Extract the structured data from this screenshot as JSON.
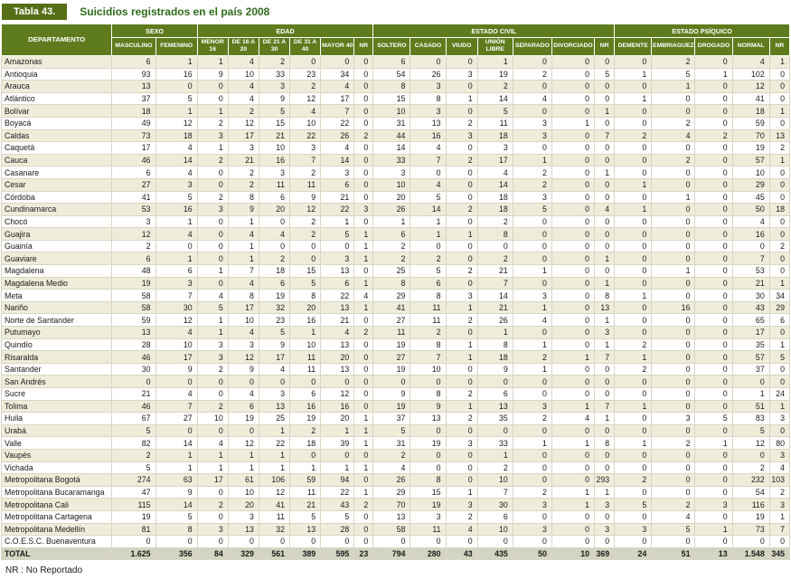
{
  "title": {
    "tab": "Tabla 43.",
    "text": "Suicidios registrados en el país 2008"
  },
  "footer": "NR : No Reportado",
  "colors": {
    "header_green": "#5e7c1e",
    "tab_green": "#566f16",
    "title_green": "#2f6b1c",
    "row_alt_beige": "#efecda",
    "total_row_gray": "#d4d4c2"
  },
  "table": {
    "corner_header": "DEPARTAMENTO",
    "groups": [
      {
        "label": "SEXO",
        "columns": [
          "MASCULINO",
          "FEMENINO"
        ]
      },
      {
        "label": "EDAD",
        "columns": [
          "MENOR 16",
          "DE 16 A 20",
          "DE 21 A 30",
          "DE 31 A 40",
          "MAYOR 40",
          "NR"
        ]
      },
      {
        "label": "ESTADO CIVIL",
        "columns": [
          "SOLTERO",
          "CASADO",
          "VIUDO",
          "UNIÓN LIBRE",
          "SEPARADO",
          "DIVORCIADO",
          "NR"
        ]
      },
      {
        "label": "ESTADO PSÍQUICO",
        "columns": [
          "DEMENTE",
          "EMBRIAGUEZ",
          "DROGADO",
          "NORMAL",
          "NR"
        ]
      }
    ],
    "rows": [
      {
        "name": "Amazonas",
        "values": [
          6,
          1,
          1,
          4,
          2,
          0,
          0,
          0,
          6,
          0,
          0,
          1,
          0,
          0,
          0,
          0,
          2,
          0,
          4,
          1
        ]
      },
      {
        "name": "Antioquia",
        "values": [
          93,
          16,
          9,
          10,
          33,
          23,
          34,
          0,
          54,
          26,
          3,
          19,
          2,
          0,
          5,
          1,
          5,
          1,
          102,
          0
        ]
      },
      {
        "name": "Arauca",
        "values": [
          13,
          0,
          0,
          4,
          3,
          2,
          4,
          0,
          8,
          3,
          0,
          2,
          0,
          0,
          0,
          0,
          1,
          0,
          12,
          0
        ]
      },
      {
        "name": "Atlántico",
        "values": [
          37,
          5,
          0,
          4,
          9,
          12,
          17,
          0,
          15,
          8,
          1,
          14,
          4,
          0,
          0,
          1,
          0,
          0,
          41,
          0
        ]
      },
      {
        "name": "Bolívar",
        "values": [
          18,
          1,
          1,
          2,
          5,
          4,
          7,
          0,
          10,
          3,
          0,
          5,
          0,
          0,
          1,
          0,
          0,
          0,
          18,
          1
        ]
      },
      {
        "name": "Boyacá",
        "values": [
          49,
          12,
          2,
          12,
          15,
          10,
          22,
          0,
          31,
          13,
          2,
          11,
          3,
          1,
          0,
          0,
          2,
          0,
          59,
          0
        ]
      },
      {
        "name": "Caldas",
        "values": [
          73,
          18,
          3,
          17,
          21,
          22,
          26,
          2,
          44,
          16,
          3,
          18,
          3,
          0,
          7,
          2,
          4,
          2,
          70,
          13
        ]
      },
      {
        "name": "Caquetá",
        "values": [
          17,
          4,
          1,
          3,
          10,
          3,
          4,
          0,
          14,
          4,
          0,
          3,
          0,
          0,
          0,
          0,
          0,
          0,
          19,
          2
        ]
      },
      {
        "name": "Cauca",
        "values": [
          46,
          14,
          2,
          21,
          16,
          7,
          14,
          0,
          33,
          7,
          2,
          17,
          1,
          0,
          0,
          0,
          2,
          0,
          57,
          1
        ]
      },
      {
        "name": "Casanare",
        "values": [
          6,
          4,
          0,
          2,
          3,
          2,
          3,
          0,
          3,
          0,
          0,
          4,
          2,
          0,
          1,
          0,
          0,
          0,
          10,
          0
        ]
      },
      {
        "name": "Cesar",
        "values": [
          27,
          3,
          0,
          2,
          11,
          11,
          6,
          0,
          10,
          4,
          0,
          14,
          2,
          0,
          0,
          1,
          0,
          0,
          29,
          0
        ]
      },
      {
        "name": "Córdoba",
        "values": [
          41,
          5,
          2,
          8,
          6,
          9,
          21,
          0,
          20,
          5,
          0,
          18,
          3,
          0,
          0,
          0,
          1,
          0,
          45,
          0
        ]
      },
      {
        "name": "Cundinamarca",
        "values": [
          53,
          16,
          3,
          9,
          20,
          12,
          22,
          3,
          26,
          14,
          2,
          18,
          5,
          0,
          4,
          1,
          0,
          0,
          50,
          18
        ]
      },
      {
        "name": "Chocó",
        "values": [
          3,
          1,
          0,
          1,
          0,
          2,
          1,
          0,
          1,
          1,
          0,
          2,
          0,
          0,
          0,
          0,
          0,
          0,
          4,
          0
        ]
      },
      {
        "name": "Guajira",
        "values": [
          12,
          4,
          0,
          4,
          4,
          2,
          5,
          1,
          6,
          1,
          1,
          8,
          0,
          0,
          0,
          0,
          0,
          0,
          16,
          0
        ]
      },
      {
        "name": "Guainía",
        "values": [
          2,
          0,
          0,
          1,
          0,
          0,
          0,
          1,
          2,
          0,
          0,
          0,
          0,
          0,
          0,
          0,
          0,
          0,
          0,
          2
        ]
      },
      {
        "name": "Guaviare",
        "values": [
          6,
          1,
          0,
          1,
          2,
          0,
          3,
          1,
          2,
          2,
          0,
          2,
          0,
          0,
          1,
          0,
          0,
          0,
          7,
          0
        ]
      },
      {
        "name": "Magdalena",
        "values": [
          48,
          6,
          1,
          7,
          18,
          15,
          13,
          0,
          25,
          5,
          2,
          21,
          1,
          0,
          0,
          0,
          1,
          0,
          53,
          0
        ]
      },
      {
        "name": "Magdalena Medio",
        "values": [
          19,
          3,
          0,
          4,
          6,
          5,
          6,
          1,
          8,
          6,
          0,
          7,
          0,
          0,
          1,
          0,
          0,
          0,
          21,
          1
        ]
      },
      {
        "name": "Meta",
        "values": [
          58,
          7,
          4,
          8,
          19,
          8,
          22,
          4,
          29,
          8,
          3,
          14,
          3,
          0,
          8,
          1,
          0,
          0,
          30,
          34
        ]
      },
      {
        "name": "Nariño",
        "values": [
          58,
          30,
          5,
          17,
          32,
          20,
          13,
          1,
          41,
          11,
          1,
          21,
          1,
          0,
          13,
          0,
          16,
          0,
          43,
          29
        ]
      },
      {
        "name": "Norte de Santander",
        "values": [
          59,
          12,
          1,
          10,
          23,
          16,
          21,
          0,
          27,
          11,
          2,
          26,
          4,
          0,
          1,
          0,
          0,
          0,
          65,
          6
        ]
      },
      {
        "name": "Putumayo",
        "values": [
          13,
          4,
          1,
          4,
          5,
          1,
          4,
          2,
          11,
          2,
          0,
          1,
          0,
          0,
          3,
          0,
          0,
          0,
          17,
          0
        ]
      },
      {
        "name": "Quindío",
        "values": [
          28,
          10,
          3,
          3,
          9,
          10,
          13,
          0,
          19,
          8,
          1,
          8,
          1,
          0,
          1,
          2,
          0,
          0,
          35,
          1
        ]
      },
      {
        "name": "Risaralda",
        "values": [
          46,
          17,
          3,
          12,
          17,
          11,
          20,
          0,
          27,
          7,
          1,
          18,
          2,
          1,
          7,
          1,
          0,
          0,
          57,
          5
        ]
      },
      {
        "name": "Santander",
        "values": [
          30,
          9,
          2,
          9,
          4,
          11,
          13,
          0,
          19,
          10,
          0,
          9,
          1,
          0,
          0,
          2,
          0,
          0,
          37,
          0
        ]
      },
      {
        "name": "San Andrés",
        "values": [
          0,
          0,
          0,
          0,
          0,
          0,
          0,
          0,
          0,
          0,
          0,
          0,
          0,
          0,
          0,
          0,
          0,
          0,
          0,
          0
        ]
      },
      {
        "name": "Sucre",
        "values": [
          21,
          4,
          0,
          4,
          3,
          6,
          12,
          0,
          9,
          8,
          2,
          6,
          0,
          0,
          0,
          0,
          0,
          0,
          1,
          24
        ]
      },
      {
        "name": "Tolima",
        "values": [
          46,
          7,
          2,
          6,
          13,
          16,
          16,
          0,
          19,
          9,
          1,
          13,
          3,
          1,
          7,
          1,
          0,
          0,
          51,
          1
        ]
      },
      {
        "name": "Huila",
        "values": [
          67,
          27,
          10,
          19,
          25,
          19,
          20,
          1,
          37,
          13,
          2,
          35,
          2,
          4,
          1,
          0,
          3,
          5,
          83,
          3
        ]
      },
      {
        "name": "Urabá",
        "values": [
          5,
          0,
          0,
          0,
          1,
          2,
          1,
          1,
          5,
          0,
          0,
          0,
          0,
          0,
          0,
          0,
          0,
          0,
          5,
          0
        ]
      },
      {
        "name": "Valle",
        "values": [
          82,
          14,
          4,
          12,
          22,
          18,
          39,
          1,
          31,
          19,
          3,
          33,
          1,
          1,
          8,
          1,
          2,
          1,
          12,
          80
        ]
      },
      {
        "name": "Vaupés",
        "values": [
          2,
          1,
          1,
          1,
          1,
          0,
          0,
          0,
          2,
          0,
          0,
          1,
          0,
          0,
          0,
          0,
          0,
          0,
          0,
          3
        ]
      },
      {
        "name": "Vichada",
        "values": [
          5,
          1,
          1,
          1,
          1,
          1,
          1,
          1,
          4,
          0,
          0,
          2,
          0,
          0,
          0,
          0,
          0,
          0,
          2,
          4
        ]
      },
      {
        "name": "Metropolitana Bogotá",
        "values": [
          274,
          63,
          17,
          61,
          106,
          59,
          94,
          0,
          26,
          8,
          0,
          10,
          0,
          0,
          293,
          2,
          0,
          0,
          232,
          103
        ]
      },
      {
        "name": "Metropolitana Bucaramanga",
        "values": [
          47,
          9,
          0,
          10,
          12,
          11,
          22,
          1,
          29,
          15,
          1,
          7,
          2,
          1,
          1,
          0,
          0,
          0,
          54,
          2
        ]
      },
      {
        "name": "Metropolitana Cali",
        "values": [
          115,
          14,
          2,
          20,
          41,
          21,
          43,
          2,
          70,
          19,
          3,
          30,
          3,
          1,
          3,
          5,
          2,
          3,
          116,
          3
        ]
      },
      {
        "name": "Metropolitana Cartagena",
        "values": [
          19,
          5,
          0,
          3,
          11,
          5,
          5,
          0,
          13,
          3,
          2,
          6,
          0,
          0,
          0,
          0,
          4,
          0,
          19,
          1
        ]
      },
      {
        "name": "Metropolitana Medellín",
        "values": [
          81,
          8,
          3,
          13,
          32,
          13,
          28,
          0,
          58,
          11,
          4,
          10,
          3,
          0,
          3,
          3,
          5,
          1,
          73,
          7
        ]
      },
      {
        "name": "C.O.E.S.C. Buenaventura",
        "values": [
          0,
          0,
          0,
          0,
          0,
          0,
          0,
          0,
          0,
          0,
          0,
          0,
          0,
          0,
          0,
          0,
          0,
          0,
          0,
          0
        ]
      }
    ],
    "total_row": {
      "name": "TOTAL",
      "values": [
        "1.625",
        "356",
        "84",
        "329",
        "561",
        "389",
        "595",
        "23",
        "794",
        "280",
        "43",
        "435",
        "50",
        "10",
        "369",
        "24",
        "51",
        "13",
        "1.548",
        "345"
      ]
    }
  }
}
